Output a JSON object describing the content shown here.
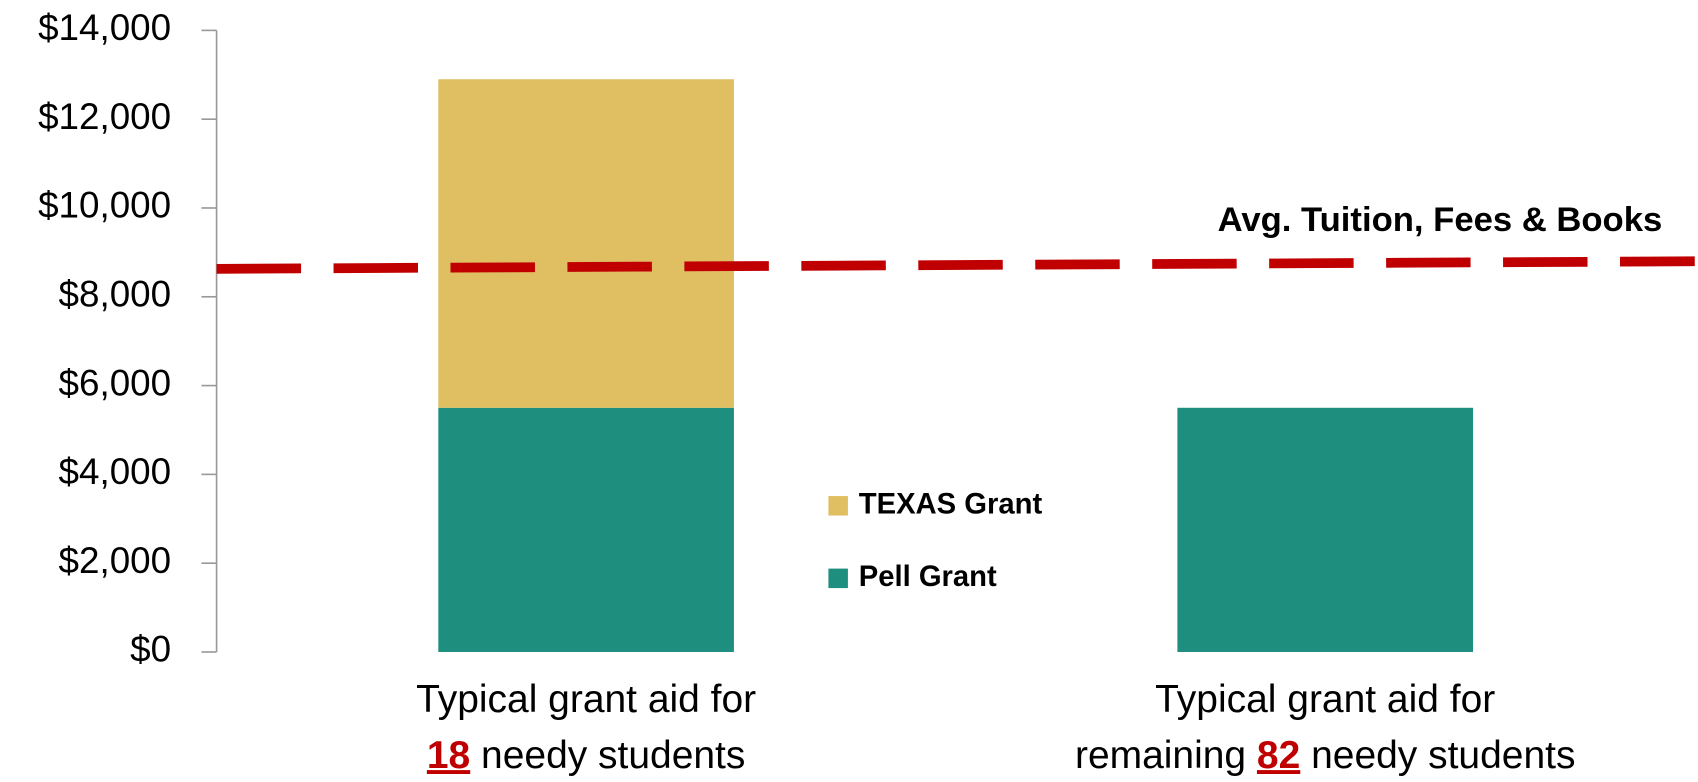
{
  "chart_data": {
    "type": "stacked_bar",
    "categories": [
      {
        "line1": "Typical grant aid for",
        "line2": [
          "18",
          "needy students"
        ],
        "highlight": 0
      },
      {
        "line1": "Typical grant aid for",
        "line2": [
          "remaining",
          "82",
          "needy students"
        ],
        "highlight": 1
      }
    ],
    "series": [
      {
        "name": "Pell Grant",
        "color": "#1e8f7e",
        "values": [
          5500,
          5500
        ]
      },
      {
        "name": "TEXAS Grant",
        "color": "#e0bf62",
        "values": [
          7400,
          null
        ]
      }
    ],
    "ylim": [
      0,
      14000
    ],
    "yticks": [
      {
        "value": 0,
        "label": "$0"
      },
      {
        "value": 2000,
        "label": "$2,000"
      },
      {
        "value": 4000,
        "label": "$4,000"
      },
      {
        "value": 6000,
        "label": "$6,000"
      },
      {
        "value": 8000,
        "label": "$8,000"
      },
      {
        "value": 10000,
        "label": "$10,000"
      },
      {
        "value": 12000,
        "label": "$12,000"
      },
      {
        "value": 14000,
        "label": "$14,000"
      }
    ],
    "reference_line": {
      "label": "Avg. Tuition, Fees & Books",
      "values": [
        8630,
        8800
      ],
      "color": "#c00000"
    },
    "legend": "center",
    "highlight_color": "#c00000"
  }
}
